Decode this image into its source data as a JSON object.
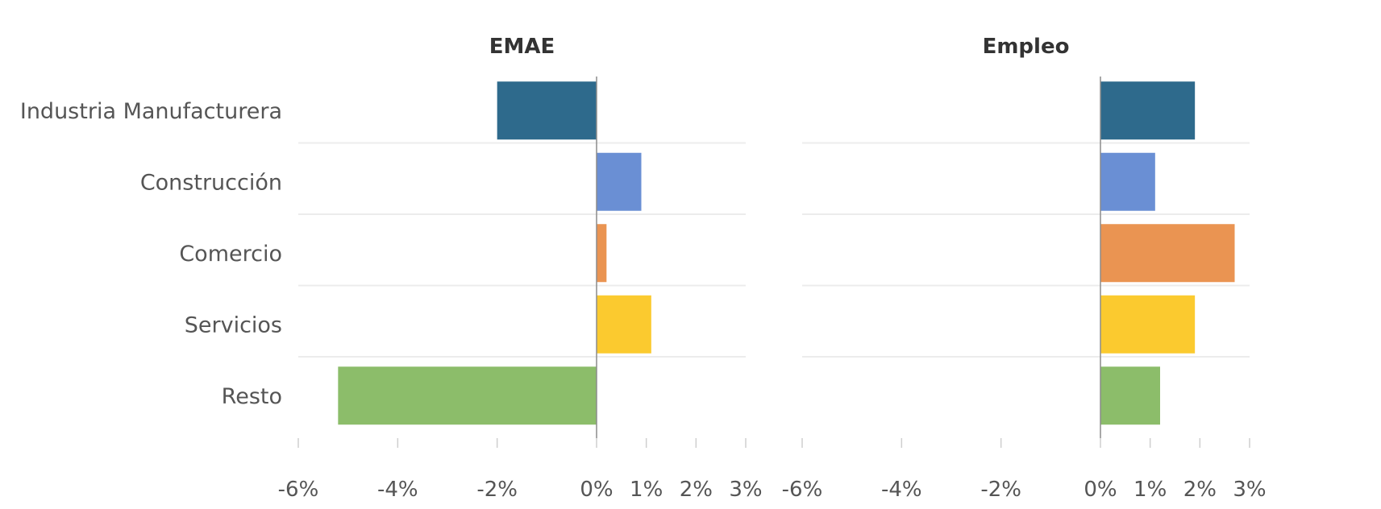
{
  "chart_data": [
    {
      "type": "bar",
      "orientation": "horizontal",
      "title": "EMAE",
      "categories": [
        "Industria Manufacturera",
        "Construcción",
        "Comercio",
        "Servicios",
        "Resto"
      ],
      "values": [
        -2.0,
        0.9,
        0.2,
        1.1,
        -5.2
      ],
      "xlim": [
        -6,
        3
      ],
      "x_ticks": [
        "-6%",
        "-4%",
        "-2%",
        "0%",
        "1%",
        "2%",
        "3%"
      ],
      "x_tick_values": [
        -6,
        -4,
        -2,
        0,
        1,
        2,
        3
      ],
      "grid": false
    },
    {
      "type": "bar",
      "orientation": "horizontal",
      "title": "Empleo",
      "categories": [
        "Industria Manufacturera",
        "Construcción",
        "Comercio",
        "Servicios",
        "Resto"
      ],
      "values": [
        1.9,
        1.1,
        2.7,
        1.9,
        1.2
      ],
      "xlim": [
        -6,
        3
      ],
      "x_ticks": [
        "-6%",
        "-4%",
        "-2%",
        "0%",
        "1%",
        "2%",
        "3%"
      ],
      "x_tick_values": [
        -6,
        -4,
        -2,
        0,
        1,
        2,
        3
      ],
      "grid": false
    }
  ],
  "colors": {
    "Industria Manufacturera": "#2e6a8c",
    "Construcción": "#6a8fd4",
    "Comercio": "#ea9452",
    "Servicios": "#fbca2f",
    "Resto": "#8cbd6a"
  }
}
